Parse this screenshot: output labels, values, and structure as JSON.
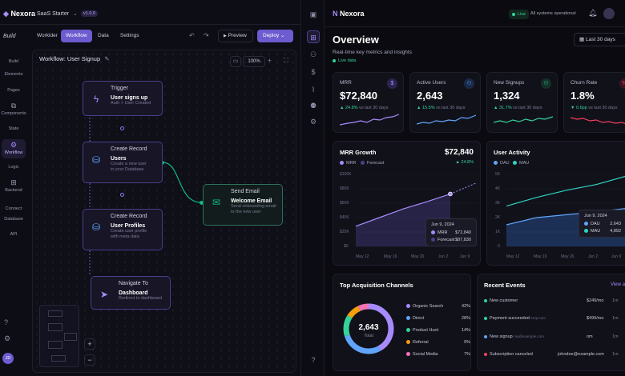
{
  "builder": {
    "logo_text": "Nexora",
    "project": "SaaS Starter",
    "version": "v1.0.0",
    "build_label": "Build",
    "tabs": [
      "Worklder",
      "Workflow",
      "Data",
      "Settings"
    ],
    "preview_label": "Preview",
    "deploy_label": "Deploy",
    "workflow_title": "Workflow: User Signup",
    "zoom": "100%",
    "sidenav": [
      "Build",
      "Elements",
      "Pages",
      "Components",
      "State",
      "Workflow",
      "Logic",
      "Backend",
      "Connect",
      "Database",
      "API"
    ],
    "user_initials": "JD",
    "nodes": {
      "trigger": {
        "heading": "Trigger",
        "title": "User signs up",
        "sub": "Auth > User Created"
      },
      "create_users": {
        "heading": "Create Record",
        "title": "Users",
        "sub1": "Create a new user",
        "sub2": "in your Database"
      },
      "create_profiles": {
        "heading": "Create Record",
        "title": "User Profiles",
        "sub1": "Create user profile",
        "sub2": "with meta data"
      },
      "navigate": {
        "heading": "Navigate To",
        "title": "Dashboard",
        "sub": "Redirect to dashboard"
      },
      "email": {
        "heading": "Send Email",
        "title": "Welcome Email",
        "sub1": "Send onboarding email",
        "sub2": "to the new user"
      }
    }
  },
  "dashboard": {
    "logo_text": "Nexora",
    "status_badge": "Live",
    "status_text": "All systems operational",
    "title": "Overview",
    "subtitle": "Real-time key metrics and insights",
    "live_label": "Live data",
    "range_label": "Last 30 days",
    "kpis": [
      {
        "label": "MRR",
        "value": "$72,840",
        "change": "24.8%",
        "note": "vs last 30 days",
        "color": "#a78bfa"
      },
      {
        "label": "Active Users",
        "value": "2,643",
        "change": "15.5%",
        "note": "vs last 30 days",
        "color": "#60a5fa"
      },
      {
        "label": "New Signups",
        "value": "1,324",
        "change": "31.7%",
        "note": "vs last 30 days",
        "color": "#34d399"
      },
      {
        "label": "Churn Rate",
        "value": "1.8%",
        "change": "0.6pp",
        "note": "vs last 30 days",
        "color": "#f43f5e"
      }
    ],
    "mrr_growth": {
      "title": "MRR Growth",
      "value": "$72,840",
      "change": "24.8%",
      "legend": [
        "MRR",
        "Forecast"
      ],
      "y_ticks": [
        "$100K",
        "$80K",
        "$60K",
        "$40K",
        "$20K",
        "$0"
      ],
      "x_ticks": [
        "May 12",
        "May 19",
        "May 26",
        "Jun 2",
        "Jun 9"
      ],
      "tooltip": {
        "date": "Jun 9, 2024",
        "mrr_label": "MRR",
        "mrr": "$72,840",
        "forecast_label": "Forecast",
        "forecast": "$87,830"
      }
    },
    "user_activity": {
      "title": "User Activity",
      "legend": [
        "DAU",
        "MAU"
      ],
      "y_ticks": [
        "5K",
        "4K",
        "3K",
        "2K",
        "1K",
        "0"
      ],
      "x_ticks": [
        "May 12",
        "May 19",
        "May 26",
        "Jun 2",
        "Jun 9"
      ],
      "tooltip": {
        "date": "Jun 9, 2024",
        "dau_label": "DAU",
        "dau": "2,643",
        "mau_label": "MAU",
        "mau": "4,892"
      }
    },
    "channels": {
      "title": "Top Acquisition Channels",
      "total": "2,643",
      "total_label": "Total",
      "items": [
        {
          "name": "Organic Search",
          "pct": "42%",
          "color": "#a78bfa"
        },
        {
          "name": "Direct",
          "pct": "28%",
          "color": "#60a5fa"
        },
        {
          "name": "Product Hunt",
          "pct": "14%",
          "color": "#34d399"
        },
        {
          "name": "Referral",
          "pct": "9%",
          "color": "#f59e0b"
        },
        {
          "name": "Social Media",
          "pct": "7%",
          "color": "#f472b6"
        }
      ]
    },
    "events": {
      "title": "Recent Events",
      "view_all": "View a",
      "items": [
        {
          "name": "New customer",
          "amount": "$249/mo",
          "ago": "1m",
          "color": "#34d399"
        },
        {
          "name": "Payment succeeded",
          "extra": "emp.com",
          "amount": "$499/mo",
          "ago": "1m",
          "color": "#34d399"
        },
        {
          "name": "New signup",
          "extra": "ma@example.com",
          "amount": "om",
          "ago": "1m",
          "color": "#60a5fa"
        },
        {
          "name": "Subscription canceled",
          "extra": "johndoe@example.com",
          "amount": "",
          "ago": "1m",
          "color": "#f43f5e"
        }
      ]
    }
  },
  "chart_data": [
    {
      "type": "line",
      "title": "MRR Growth",
      "x": [
        "May 12",
        "May 19",
        "May 26",
        "Jun 2",
        "Jun 9"
      ],
      "series": [
        {
          "name": "MRR",
          "values": [
            28000,
            40000,
            52000,
            62000,
            72840
          ]
        },
        {
          "name": "Forecast",
          "values": [
            null,
            null,
            null,
            null,
            87830
          ]
        }
      ],
      "ylim": [
        0,
        100000
      ]
    },
    {
      "type": "line",
      "title": "User Activity",
      "x": [
        "May 12",
        "May 19",
        "May 26",
        "Jun 2",
        "Jun 9"
      ],
      "series": [
        {
          "name": "DAU",
          "values": [
            1500,
            2000,
            2200,
            2400,
            2643
          ]
        },
        {
          "name": "MAU",
          "values": [
            2800,
            3400,
            3900,
            4300,
            4892
          ]
        }
      ],
      "ylim": [
        0,
        5000
      ]
    }
  ]
}
